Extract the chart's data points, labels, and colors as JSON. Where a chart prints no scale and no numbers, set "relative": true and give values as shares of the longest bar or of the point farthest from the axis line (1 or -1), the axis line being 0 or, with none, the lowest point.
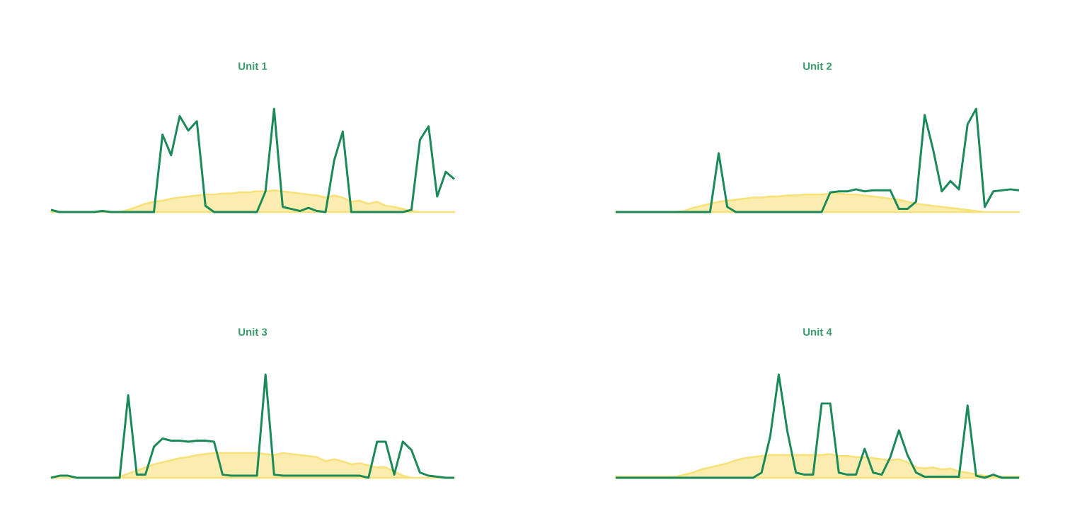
{
  "chart_data": [
    {
      "type": "line",
      "title": "Unit 1",
      "relative": true,
      "categories": [
        null,
        null,
        null,
        null,
        null,
        null,
        null,
        null,
        null,
        null,
        null,
        null,
        null,
        null,
        null,
        null,
        null,
        null,
        null,
        null,
        null,
        null,
        null,
        null,
        null,
        null,
        null,
        null,
        null,
        null,
        null,
        null,
        null,
        null,
        null,
        null,
        null,
        null,
        null,
        null,
        null,
        null,
        null,
        null,
        null,
        null,
        null,
        null
      ],
      "series": [
        {
          "type": "area",
          "color": "#f9e17a",
          "values": [
            0,
            0,
            0,
            0,
            0,
            0,
            0,
            0,
            0,
            0.02,
            0.05,
            0.08,
            0.1,
            0.11,
            0.13,
            0.14,
            0.15,
            0.16,
            0.17,
            0.17,
            0.18,
            0.18,
            0.19,
            0.19,
            0.2,
            0.2,
            0.21,
            0.2,
            0.19,
            0.18,
            0.17,
            0.16,
            0.14,
            0.16,
            0.14,
            0.1,
            0.11,
            0.08,
            0.1,
            0.06,
            0.05,
            0.03,
            0.01,
            0,
            0,
            0,
            0,
            0
          ]
        },
        {
          "color": "#1b8a5a",
          "values": [
            0.02,
            0,
            0,
            0,
            0,
            0,
            0.01,
            0,
            0,
            0,
            0,
            0,
            0,
            0.75,
            0.55,
            0.93,
            0.79,
            0.88,
            0.06,
            0,
            0,
            0,
            0,
            0,
            0,
            0.2,
            1.0,
            0.05,
            0.03,
            0.01,
            0.04,
            0.01,
            0,
            0.5,
            0.78,
            0,
            0,
            0,
            0,
            0,
            0,
            0,
            0.02,
            0.7,
            0.83,
            0.15,
            0.39,
            0.32
          ]
        }
      ]
    },
    {
      "type": "line",
      "title": "Unit 2",
      "relative": true,
      "categories": [
        null,
        null,
        null,
        null,
        null,
        null,
        null,
        null,
        null,
        null,
        null,
        null,
        null,
        null,
        null,
        null,
        null,
        null,
        null,
        null,
        null,
        null,
        null,
        null,
        null,
        null,
        null,
        null,
        null,
        null,
        null,
        null,
        null,
        null,
        null,
        null,
        null,
        null,
        null,
        null,
        null,
        null,
        null,
        null,
        null,
        null,
        null,
        null
      ],
      "series": [
        {
          "type": "area",
          "color": "#f9e17a",
          "values": [
            0,
            0,
            0,
            0,
            0,
            0,
            0,
            0,
            0.01,
            0.04,
            0.06,
            0.08,
            0.1,
            0.11,
            0.12,
            0.13,
            0.14,
            0.14,
            0.15,
            0.15,
            0.16,
            0.16,
            0.17,
            0.17,
            0.17,
            0.18,
            0.18,
            0.17,
            0.17,
            0.16,
            0.15,
            0.14,
            0.13,
            0.12,
            0.1,
            0.08,
            0.07,
            0.06,
            0.05,
            0.04,
            0.03,
            0.02,
            0.01,
            0,
            0,
            0,
            0,
            0
          ]
        },
        {
          "color": "#1b8a5a",
          "values": [
            0,
            0,
            0,
            0,
            0,
            0,
            0,
            0,
            0,
            0,
            0,
            0,
            0.57,
            0.05,
            0,
            0,
            0,
            0,
            0,
            0,
            0,
            0,
            0,
            0,
            0,
            0.19,
            0.2,
            0.2,
            0.22,
            0.2,
            0.21,
            0.21,
            0.21,
            0.03,
            0.03,
            0.1,
            0.94,
            0.6,
            0.2,
            0.3,
            0.22,
            0.85,
            1.0,
            0.05,
            0.2,
            0.21,
            0.22,
            0.21
          ]
        }
      ]
    },
    {
      "type": "line",
      "title": "Unit 3",
      "relative": true,
      "categories": [
        null,
        null,
        null,
        null,
        null,
        null,
        null,
        null,
        null,
        null,
        null,
        null,
        null,
        null,
        null,
        null,
        null,
        null,
        null,
        null,
        null,
        null,
        null,
        null,
        null,
        null,
        null,
        null,
        null,
        null,
        null,
        null,
        null,
        null,
        null,
        null,
        null,
        null,
        null,
        null,
        null,
        null,
        null,
        null,
        null,
        null,
        null,
        null
      ],
      "series": [
        {
          "type": "area",
          "color": "#f9e17a",
          "values": [
            0,
            0,
            0,
            0,
            0,
            0,
            0,
            0,
            0.01,
            0.04,
            0.07,
            0.1,
            0.13,
            0.15,
            0.17,
            0.19,
            0.2,
            0.22,
            0.23,
            0.24,
            0.24,
            0.24,
            0.24,
            0.24,
            0.24,
            0.23,
            0.22,
            0.24,
            0.23,
            0.22,
            0.21,
            0.2,
            0.16,
            0.18,
            0.16,
            0.13,
            0.14,
            0.12,
            0.1,
            0.1,
            0.06,
            0.02,
            0,
            0,
            0,
            0,
            0,
            0
          ]
        },
        {
          "color": "#1b8a5a",
          "values": [
            0,
            0.02,
            0.02,
            0,
            0,
            0,
            0,
            0,
            0,
            0.8,
            0.03,
            0.03,
            0.3,
            0.38,
            0.36,
            0.36,
            0.35,
            0.36,
            0.36,
            0.35,
            0.03,
            0.02,
            0.02,
            0.02,
            0.02,
            1.0,
            0.03,
            0.02,
            0.02,
            0.02,
            0.02,
            0.02,
            0.02,
            0.02,
            0.02,
            0.02,
            0.02,
            0,
            0.35,
            0.35,
            0.03,
            0.35,
            0.27,
            0.05,
            0.02,
            0.01,
            0,
            0
          ]
        }
      ]
    },
    {
      "type": "line",
      "title": "Unit 4",
      "relative": true,
      "categories": [
        null,
        null,
        null,
        null,
        null,
        null,
        null,
        null,
        null,
        null,
        null,
        null,
        null,
        null,
        null,
        null,
        null,
        null,
        null,
        null,
        null,
        null,
        null,
        null,
        null,
        null,
        null,
        null,
        null,
        null,
        null,
        null,
        null,
        null,
        null,
        null,
        null,
        null,
        null,
        null,
        null,
        null,
        null,
        null,
        null,
        null,
        null,
        null
      ],
      "series": [
        {
          "type": "area",
          "color": "#f9e17a",
          "values": [
            0.01,
            0.01,
            0.01,
            0.01,
            0.01,
            0.01,
            0.01,
            0.01,
            0.03,
            0.05,
            0.08,
            0.1,
            0.12,
            0.14,
            0.17,
            0.19,
            0.2,
            0.21,
            0.22,
            0.22,
            0.22,
            0.22,
            0.22,
            0.22,
            0.22,
            0.23,
            0.21,
            0.21,
            0.2,
            0.2,
            0.19,
            0.18,
            0.17,
            0.18,
            0.15,
            0.1,
            0.09,
            0.1,
            0.08,
            0.09,
            0.06,
            0.05,
            0.03,
            0.02,
            0.01,
            0.01,
            0.01,
            0.01
          ]
        },
        {
          "color": "#1b8a5a",
          "values": [
            0,
            0,
            0,
            0,
            0,
            0,
            0,
            0,
            0,
            0,
            0,
            0,
            0,
            0,
            0,
            0,
            0,
            0.05,
            0.4,
            1.0,
            0.45,
            0.05,
            0.03,
            0.03,
            0.72,
            0.72,
            0.05,
            0.03,
            0.03,
            0.28,
            0.05,
            0.03,
            0.2,
            0.46,
            0.22,
            0.05,
            0.01,
            0.01,
            0.01,
            0.01,
            0.01,
            0.7,
            0.02,
            0,
            0.03,
            0,
            0,
            0
          ]
        }
      ]
    }
  ]
}
